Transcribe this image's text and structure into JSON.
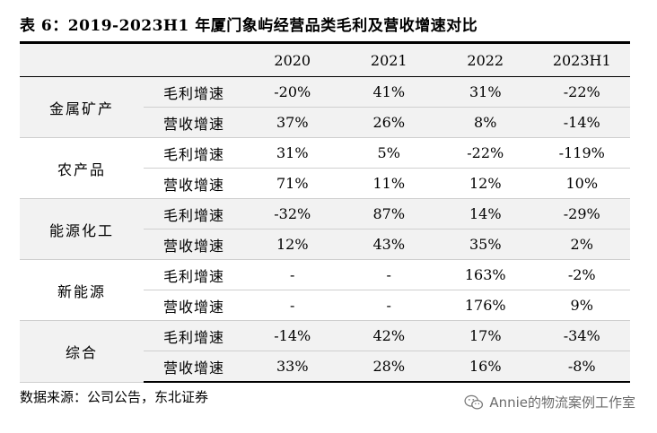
{
  "title": "表 6：2019-2023H1 年厦门象屿经营品类毛利及营收增速对比",
  "columns": [
    "2020",
    "2021",
    "2022",
    "2023H1"
  ],
  "groups": [
    {
      "category": "金属矿产",
      "rows": [
        {
          "metric": "毛利增速",
          "values": [
            "-20%",
            "41%",
            "31%",
            "-22%"
          ]
        },
        {
          "metric": "营收增速",
          "values": [
            "37%",
            "26%",
            "8%",
            "-14%"
          ]
        }
      ]
    },
    {
      "category": "农产品",
      "rows": [
        {
          "metric": "毛利增速",
          "values": [
            "31%",
            "5%",
            "-22%",
            "-119%"
          ]
        },
        {
          "metric": "营收增速",
          "values": [
            "71%",
            "11%",
            "12%",
            "10%"
          ]
        }
      ]
    },
    {
      "category": "能源化工",
      "rows": [
        {
          "metric": "毛利增速",
          "values": [
            "-32%",
            "87%",
            "14%",
            "-29%"
          ]
        },
        {
          "metric": "营收增速",
          "values": [
            "12%",
            "43%",
            "35%",
            "2%"
          ]
        }
      ]
    },
    {
      "category": "新能源",
      "rows": [
        {
          "metric": "毛利增速",
          "values": [
            "-",
            "-",
            "163%",
            "-2%"
          ]
        },
        {
          "metric": "营收增速",
          "values": [
            "-",
            "-",
            "176%",
            "9%"
          ]
        }
      ]
    },
    {
      "category": "综合",
      "rows": [
        {
          "metric": "毛利增速",
          "values": [
            "-14%",
            "42%",
            "17%",
            "-34%"
          ]
        },
        {
          "metric": "营收增速",
          "values": [
            "33%",
            "28%",
            "16%",
            "-8%"
          ]
        }
      ]
    }
  ],
  "source": "数据来源：公司公告，东北证券",
  "watermark": {
    "text": "Annie的物流案例工作室",
    "icon": "wechat-icon"
  }
}
